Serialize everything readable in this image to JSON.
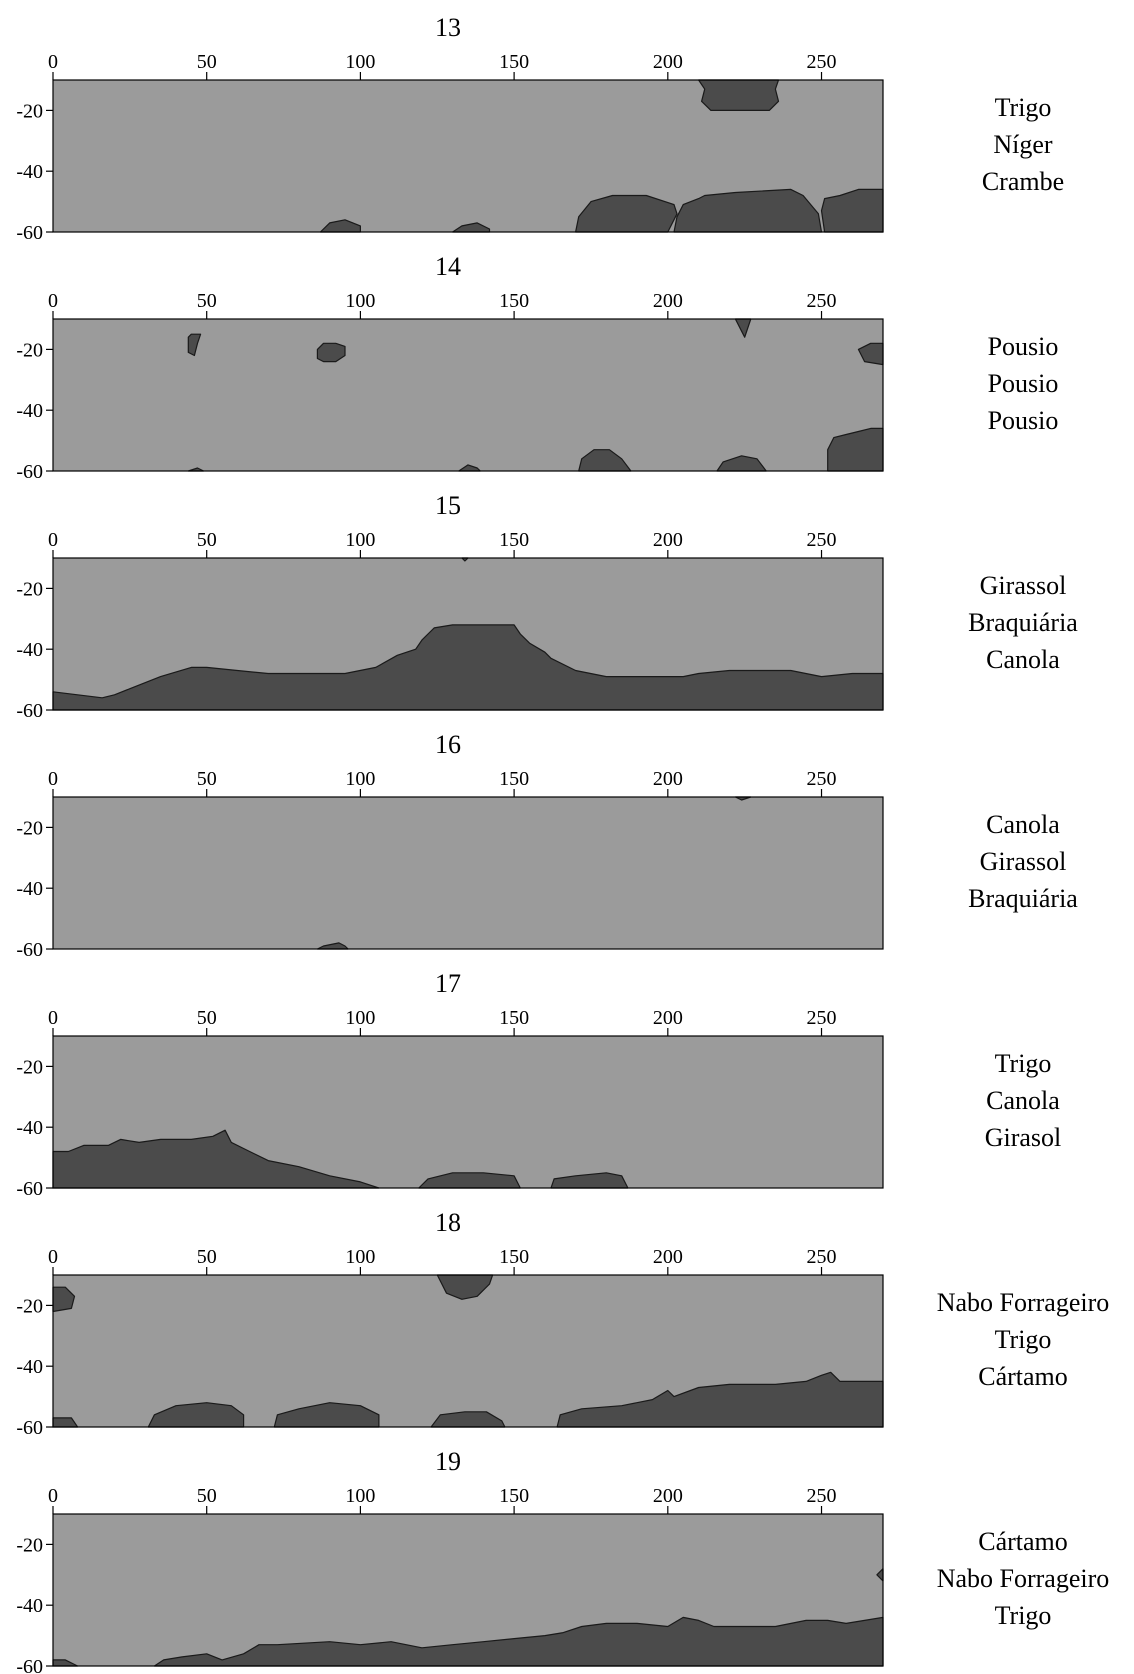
{
  "chart_data": [
    {
      "type": "contour",
      "title": "13",
      "xticks": [
        0,
        50,
        100,
        150,
        200,
        250
      ],
      "yticks": [
        -20,
        -40,
        -60
      ],
      "xlim": [
        0,
        270
      ],
      "ylim": [
        -60,
        -10
      ],
      "crop_sequence": [
        "Trigo",
        "Níger",
        "Crambe"
      ],
      "regions": [
        [
          [
            210,
            -10
          ],
          [
            236,
            -10
          ],
          [
            235,
            -13
          ],
          [
            236,
            -17
          ],
          [
            233,
            -20
          ],
          [
            224,
            -20
          ],
          [
            214,
            -20
          ],
          [
            211,
            -17
          ],
          [
            212,
            -13
          ]
        ],
        [
          [
            170,
            -60
          ],
          [
            171,
            -55
          ],
          [
            175,
            -50
          ],
          [
            182,
            -48
          ],
          [
            193,
            -48
          ],
          [
            202,
            -51
          ],
          [
            203,
            -54
          ],
          [
            200,
            -60
          ]
        ],
        [
          [
            202,
            -60
          ],
          [
            203,
            -55
          ],
          [
            205,
            -51
          ],
          [
            210,
            -49
          ],
          [
            212,
            -48
          ],
          [
            222,
            -47
          ],
          [
            240,
            -46
          ],
          [
            244,
            -48
          ],
          [
            249,
            -54
          ],
          [
            250,
            -60
          ]
        ],
        [
          [
            251,
            -60
          ],
          [
            250,
            -53
          ],
          [
            251,
            -49
          ],
          [
            256,
            -48
          ],
          [
            262,
            -46
          ],
          [
            270,
            -46
          ],
          [
            270,
            -60
          ]
        ],
        [
          [
            87,
            -60
          ],
          [
            90,
            -57
          ],
          [
            95,
            -56
          ],
          [
            100,
            -58
          ],
          [
            100,
            -60
          ]
        ],
        [
          [
            130,
            -60
          ],
          [
            133,
            -58
          ],
          [
            138,
            -57
          ],
          [
            142,
            -59
          ],
          [
            142,
            -60
          ]
        ]
      ]
    },
    {
      "type": "contour",
      "title": "14",
      "xticks": [
        0,
        50,
        100,
        150,
        200,
        250
      ],
      "yticks": [
        -20,
        -40,
        -60
      ],
      "xlim": [
        0,
        270
      ],
      "ylim": [
        -60,
        -10
      ],
      "crop_sequence": [
        "Pousio",
        "Pousio",
        "Pousio"
      ],
      "regions": [
        [
          [
            44,
            -16
          ],
          [
            45,
            -15
          ],
          [
            48,
            -15
          ],
          [
            47,
            -18
          ],
          [
            46,
            -22
          ],
          [
            44,
            -21
          ]
        ],
        [
          [
            86,
            -20
          ],
          [
            88,
            -18
          ],
          [
            92,
            -18
          ],
          [
            95,
            -19
          ],
          [
            95,
            -22
          ],
          [
            92,
            -24
          ],
          [
            88,
            -24
          ],
          [
            86,
            -23
          ]
        ],
        [
          [
            222,
            -10
          ],
          [
            227,
            -10
          ],
          [
            225,
            -16
          ],
          [
            224,
            -14
          ]
        ],
        [
          [
            262,
            -20
          ],
          [
            266,
            -18
          ],
          [
            270,
            -18
          ],
          [
            270,
            -25
          ],
          [
            264,
            -24
          ]
        ],
        [
          [
            171,
            -60
          ],
          [
            172,
            -56
          ],
          [
            176,
            -53
          ],
          [
            181,
            -53
          ],
          [
            185,
            -56
          ],
          [
            188,
            -60
          ]
        ],
        [
          [
            216,
            -60
          ],
          [
            218,
            -57
          ],
          [
            224,
            -55
          ],
          [
            229,
            -56
          ],
          [
            232,
            -60
          ]
        ],
        [
          [
            132,
            -60
          ],
          [
            135,
            -58
          ],
          [
            138,
            -59
          ],
          [
            139,
            -60
          ]
        ],
        [
          [
            252,
            -60
          ],
          [
            252,
            -53
          ],
          [
            254,
            -49
          ],
          [
            258,
            -48
          ],
          [
            262,
            -47
          ],
          [
            266,
            -46
          ],
          [
            270,
            -46
          ],
          [
            270,
            -60
          ]
        ],
        [
          [
            44,
            -60
          ],
          [
            47,
            -59
          ],
          [
            49,
            -60
          ]
        ]
      ]
    },
    {
      "type": "contour",
      "title": "15",
      "xticks": [
        0,
        50,
        100,
        150,
        200,
        250
      ],
      "yticks": [
        -20,
        -40,
        -60
      ],
      "xlim": [
        0,
        270
      ],
      "ylim": [
        -60,
        -10
      ],
      "crop_sequence": [
        "Girassol",
        "Braquiária",
        "Canola"
      ],
      "regions": [
        [
          [
            0,
            -60
          ],
          [
            0,
            -54
          ],
          [
            8,
            -55
          ],
          [
            16,
            -56
          ],
          [
            20,
            -55
          ],
          [
            25,
            -53
          ],
          [
            35,
            -49
          ],
          [
            45,
            -46
          ],
          [
            50,
            -46
          ],
          [
            60,
            -47
          ],
          [
            70,
            -48
          ],
          [
            80,
            -48
          ],
          [
            95,
            -48
          ],
          [
            105,
            -46
          ],
          [
            112,
            -42
          ],
          [
            118,
            -40
          ],
          [
            120,
            -37
          ],
          [
            122,
            -35
          ],
          [
            124,
            -33
          ],
          [
            130,
            -32
          ],
          [
            150,
            -32
          ],
          [
            152,
            -35
          ],
          [
            155,
            -38
          ],
          [
            160,
            -41
          ],
          [
            162,
            -43
          ],
          [
            170,
            -47
          ],
          [
            180,
            -49
          ],
          [
            195,
            -49
          ],
          [
            205,
            -49
          ],
          [
            210,
            -48
          ],
          [
            220,
            -47
          ],
          [
            240,
            -47
          ],
          [
            250,
            -49
          ],
          [
            260,
            -48
          ],
          [
            270,
            -48
          ],
          [
            270,
            -60
          ]
        ],
        [
          [
            133,
            -10
          ],
          [
            135,
            -10
          ],
          [
            134,
            -11
          ]
        ]
      ]
    },
    {
      "type": "contour",
      "title": "16",
      "xticks": [
        0,
        50,
        100,
        150,
        200,
        250
      ],
      "yticks": [
        -20,
        -40,
        -60
      ],
      "xlim": [
        0,
        270
      ],
      "ylim": [
        -60,
        -10
      ],
      "crop_sequence": [
        "Canola",
        "Girassol",
        "Braquiária"
      ],
      "regions": [
        [
          [
            86,
            -60
          ],
          [
            88,
            -59
          ],
          [
            93,
            -58
          ],
          [
            95,
            -59
          ],
          [
            96,
            -60
          ]
        ],
        [
          [
            222,
            -10
          ],
          [
            227,
            -10
          ],
          [
            224,
            -11
          ]
        ]
      ]
    },
    {
      "type": "contour",
      "title": "17",
      "xticks": [
        0,
        50,
        100,
        150,
        200,
        250
      ],
      "yticks": [
        -20,
        -40,
        -60
      ],
      "xlim": [
        0,
        270
      ],
      "ylim": [
        -60,
        -10
      ],
      "crop_sequence": [
        "Trigo",
        "Canola",
        "Girasol"
      ],
      "regions": [
        [
          [
            0,
            -60
          ],
          [
            0,
            -48
          ],
          [
            5,
            -48
          ],
          [
            10,
            -46
          ],
          [
            18,
            -46
          ],
          [
            22,
            -44
          ],
          [
            28,
            -45
          ],
          [
            35,
            -44
          ],
          [
            45,
            -44
          ],
          [
            52,
            -43
          ],
          [
            56,
            -41
          ],
          [
            58,
            -45
          ],
          [
            62,
            -47
          ],
          [
            70,
            -51
          ],
          [
            80,
            -53
          ],
          [
            90,
            -56
          ],
          [
            100,
            -58
          ],
          [
            106,
            -60
          ]
        ],
        [
          [
            119,
            -60
          ],
          [
            122,
            -57
          ],
          [
            130,
            -55
          ],
          [
            140,
            -55
          ],
          [
            150,
            -56
          ],
          [
            152,
            -60
          ]
        ],
        [
          [
            162,
            -60
          ],
          [
            163,
            -57
          ],
          [
            170,
            -56
          ],
          [
            180,
            -55
          ],
          [
            185,
            -56
          ],
          [
            187,
            -60
          ]
        ]
      ]
    },
    {
      "type": "contour",
      "title": "18",
      "xticks": [
        0,
        50,
        100,
        150,
        200,
        250
      ],
      "yticks": [
        -20,
        -40,
        -60
      ],
      "xlim": [
        0,
        270
      ],
      "ylim": [
        -60,
        -10
      ],
      "crop_sequence": [
        "Nabo Forrageiro",
        "Trigo",
        "Cártamo"
      ],
      "regions": [
        [
          [
            0,
            -14
          ],
          [
            4,
            -14
          ],
          [
            7,
            -17
          ],
          [
            6,
            -21
          ],
          [
            0,
            -22
          ]
        ],
        [
          [
            125,
            -10
          ],
          [
            143,
            -10
          ],
          [
            142,
            -13
          ],
          [
            138,
            -17
          ],
          [
            133,
            -18
          ],
          [
            128,
            -16
          ]
        ],
        [
          [
            0,
            -60
          ],
          [
            0,
            -57
          ],
          [
            6,
            -57
          ],
          [
            8,
            -60
          ]
        ],
        [
          [
            31,
            -60
          ],
          [
            33,
            -56
          ],
          [
            40,
            -53
          ],
          [
            50,
            -52
          ],
          [
            58,
            -53
          ],
          [
            62,
            -56
          ],
          [
            62,
            -60
          ]
        ],
        [
          [
            72,
            -60
          ],
          [
            73,
            -56
          ],
          [
            80,
            -54
          ],
          [
            90,
            -52
          ],
          [
            100,
            -53
          ],
          [
            106,
            -56
          ],
          [
            106,
            -60
          ]
        ],
        [
          [
            123,
            -60
          ],
          [
            126,
            -56
          ],
          [
            134,
            -55
          ],
          [
            141,
            -55
          ],
          [
            146,
            -58
          ],
          [
            147,
            -60
          ]
        ],
        [
          [
            164,
            -60
          ],
          [
            165,
            -56
          ],
          [
            172,
            -54
          ],
          [
            185,
            -53
          ],
          [
            195,
            -51
          ],
          [
            200,
            -48
          ],
          [
            202,
            -50
          ],
          [
            210,
            -47
          ],
          [
            220,
            -46
          ],
          [
            235,
            -46
          ],
          [
            245,
            -45
          ],
          [
            250,
            -43
          ],
          [
            253,
            -42
          ],
          [
            256,
            -45
          ],
          [
            270,
            -45
          ],
          [
            270,
            -60
          ]
        ]
      ]
    },
    {
      "type": "contour",
      "title": "19",
      "xticks": [
        0,
        50,
        100,
        150,
        200,
        250
      ],
      "yticks": [
        -20,
        -40,
        -60
      ],
      "xlim": [
        0,
        270
      ],
      "ylim": [
        -60,
        -10
      ],
      "crop_sequence": [
        "Cártamo",
        "Nabo Forrageiro",
        "Trigo"
      ],
      "regions": [
        [
          [
            0,
            -60
          ],
          [
            0,
            -58
          ],
          [
            4,
            -58
          ],
          [
            8,
            -60
          ]
        ],
        [
          [
            33,
            -60
          ],
          [
            36,
            -58
          ],
          [
            42,
            -57
          ],
          [
            50,
            -56
          ],
          [
            55,
            -58
          ],
          [
            62,
            -56
          ],
          [
            67,
            -53
          ],
          [
            73,
            -53
          ],
          [
            90,
            -52
          ],
          [
            100,
            -53
          ],
          [
            110,
            -52
          ],
          [
            120,
            -54
          ],
          [
            130,
            -53
          ],
          [
            140,
            -52
          ],
          [
            150,
            -51
          ],
          [
            160,
            -50
          ],
          [
            166,
            -49
          ],
          [
            172,
            -47
          ],
          [
            180,
            -46
          ],
          [
            190,
            -46
          ],
          [
            200,
            -47
          ],
          [
            205,
            -44
          ],
          [
            210,
            -45
          ],
          [
            215,
            -47
          ],
          [
            225,
            -47
          ],
          [
            235,
            -47
          ],
          [
            245,
            -45
          ],
          [
            252,
            -45
          ],
          [
            258,
            -46
          ],
          [
            264,
            -45
          ],
          [
            270,
            -44
          ],
          [
            270,
            -60
          ]
        ],
        [
          [
            268,
            -30
          ],
          [
            270,
            -28
          ],
          [
            270,
            -32
          ]
        ]
      ]
    }
  ]
}
